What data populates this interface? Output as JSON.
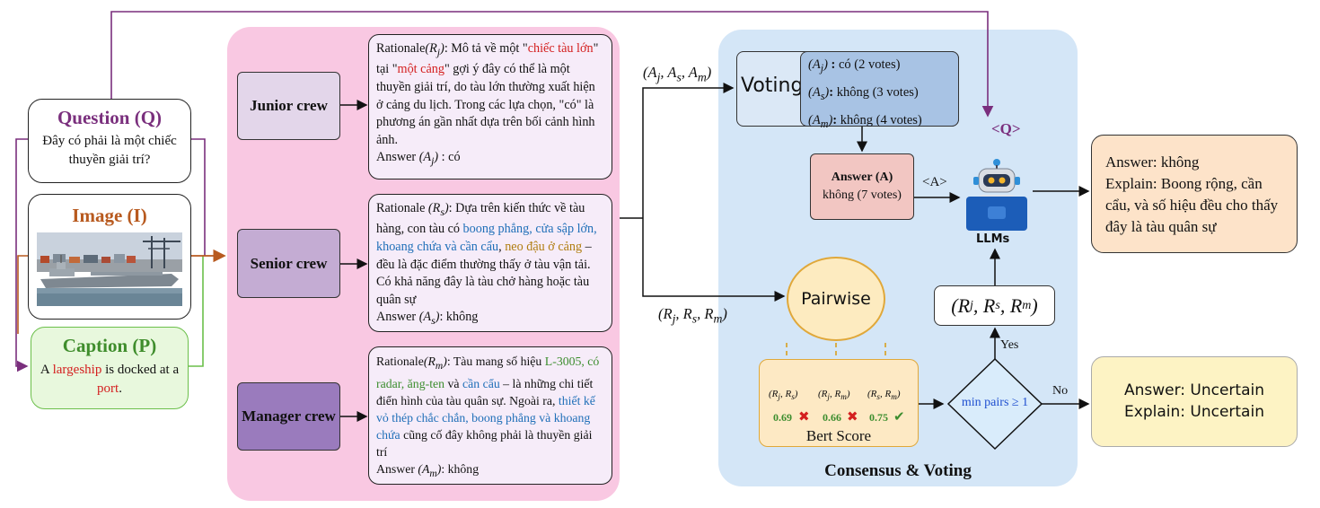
{
  "inputs": {
    "question_title": "Question (Q)",
    "question_text": "Đây có phải là một chiếc thuyền giải trí?",
    "image_title": "Image (I)",
    "caption_title": "Caption (P)",
    "caption_pre": "A ",
    "caption_hl1": "largeship",
    "caption_mid": " is docked at a ",
    "caption_hl2": "port",
    "caption_post": "."
  },
  "crews": {
    "junior": "Junior crew",
    "senior": "Senior crew",
    "manager": "Manager crew"
  },
  "rationales": {
    "junior": {
      "label": "Rationale",
      "sym": "(R",
      "sub": "j",
      "close": ")",
      "p1": ": Mô tả về một \"",
      "h1": "chiếc tàu lớn",
      "p2": "\" tại \"",
      "h2": "một cảng",
      "p3": "\" gợi ý đây có thể là một thuyền giải trí, do tàu lớn thường xuất hiện ở cảng du lịch. Trong các lựa chọn, \"có\" là phương án gần nhất dựa trên bối cảnh hình ảnh.",
      "answer_label": "Answer",
      "answer_sym": "(A",
      "answer_close": ")",
      "answer_value": " : có"
    },
    "senior": {
      "label": "Rationale",
      "sym": "(R",
      "sub": "s",
      "close": ")",
      "p1": ": Dựa trên kiến thức về tàu hàng, con tàu có ",
      "h1": "boong phẳng, cửa sập lớn, khoang chứa và cần cẩu",
      "p2": ", ",
      "h2": "neo đậu ở cảng",
      "p3": " – đều là đặc điểm thường thấy ở tàu vận tải. Có khả năng đây là tàu chở hàng hoặc tàu quân sự",
      "answer_label": "Answer",
      "answer_sym": "(A",
      "answer_close": ")",
      "answer_value": ": không"
    },
    "manager": {
      "label": "Rationale",
      "sym": "(R",
      "sub": "m",
      "close": ")",
      "p1": ": Tàu mang số hiệu ",
      "h1": "L-3005, có radar, ăng-ten",
      "p2": " và ",
      "h2": "cần cẩu",
      "p3": " – là những chi tiết điển hình của tàu quân sự. Ngoài ra, ",
      "h3": "thiết kế vỏ thép chắc chắn, boong phẳng và khoang chứa",
      "p4": " cũng cố đây không phải là thuyền giải trí",
      "answer_label": "Answer",
      "answer_sym": "(A",
      "answer_close": ")",
      "answer_value": ": không"
    }
  },
  "consensus": {
    "answers_tuple": "(Aj, As, Am)",
    "rationales_tuple": "(Rj, Rs, Rm)",
    "voting_label": "Voting",
    "votes": [
      {
        "sym": "A",
        "sub": "j",
        "text": "có (2 votes)"
      },
      {
        "sym": "A",
        "sub": "s",
        "text": "không (3 votes)"
      },
      {
        "sym": "A",
        "sub": "m",
        "text": "không (4 votes)"
      }
    ],
    "answer_title": "Answer (A)",
    "answer_value": "không (7 votes)",
    "a_tag": "<A>",
    "q_tag": "<Q>",
    "pairwise_label": "Pairwise",
    "pairs": [
      "(Rj, Rs)",
      "(Rj, Rm)",
      "(Rs, Rm)"
    ],
    "scores": [
      "0.69",
      "0.66",
      "0.75"
    ],
    "bert_label": "Bert Score",
    "decision": "min pairs ≥ 1",
    "yes_label": "Yes",
    "no_label": "No",
    "rationale_tuple_box": "(Rj, Rs, Rm)",
    "llm_label": "LLMs",
    "section_title": "Consensus & Voting"
  },
  "outputs": {
    "final": {
      "answer": "Answer: không",
      "explain": "Explain: Boong rộng, cần cẩu, và số hiệu đều cho thấy đây là tàu quân sự"
    },
    "uncertain": {
      "answer": "Answer: Uncertain",
      "explain": "Explain: Uncertain"
    }
  },
  "colors": {
    "question": "#7a2f7d",
    "image": "#b85a1f",
    "caption": "#3f8d2c",
    "pink_panel": "#f9c8e2",
    "blue_panel": "#d4e6f7",
    "highlight_red": "#d42020",
    "highlight_blue": "#1f6fb8"
  }
}
